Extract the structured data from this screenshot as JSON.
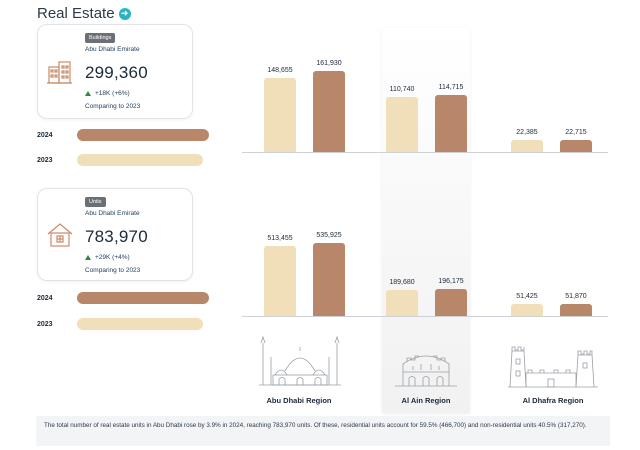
{
  "header": {
    "title": "Real Estate",
    "arrow_icon": "arrow-right-circle-icon"
  },
  "colors": {
    "y2024": "#b8876a",
    "y2023": "#f0dfb8",
    "accent": "#2bb3c0",
    "up": "#2a8a3a"
  },
  "cards": {
    "buildings": {
      "badge": "Buildings",
      "subtitle": "Abu Dhabi Emirate",
      "value": "299,360",
      "change": "+18K (+6%)",
      "compare": "Comparing to 2023",
      "icon": "building-icon"
    },
    "units": {
      "badge": "Units",
      "subtitle": "Abu Dhabi Emirate",
      "value": "783,970",
      "change": "+29K (+4%)",
      "compare": "Comparing to 2023",
      "icon": "house-icon"
    }
  },
  "legend": {
    "y2024": "2024",
    "y2023": "2023"
  },
  "chart_data": [
    {
      "type": "bar",
      "categories": [
        "Abu Dhabi Region",
        "Al Ain Region",
        "Al Dhafra Region"
      ],
      "series": [
        {
          "name": "2023",
          "values": [
            148655,
            110740,
            22385
          ],
          "labels": [
            "148,655",
            "110,740",
            "22,385"
          ]
        },
        {
          "name": "2024",
          "values": [
            161930,
            114715,
            22715
          ],
          "labels": [
            "161,930",
            "114,715",
            "22,715"
          ]
        }
      ],
      "ylim": [
        0,
        180000
      ]
    },
    {
      "type": "bar",
      "categories": [
        "Abu Dhabi Region",
        "Al Ain Region",
        "Al Dhafra Region"
      ],
      "series": [
        {
          "name": "2023",
          "values": [
            513455,
            189680,
            51425
          ],
          "labels": [
            "513,455",
            "189,680",
            "51,425"
          ]
        },
        {
          "name": "2024",
          "values": [
            535925,
            196175,
            51870
          ],
          "labels": [
            "535,925",
            "196,175",
            "51,870"
          ]
        }
      ],
      "ylim": [
        0,
        600000
      ]
    }
  ],
  "regions": {
    "abu_dhabi": {
      "label": "Abu Dhabi Region",
      "icon": "grand-mosque-icon"
    },
    "al_ain": {
      "label": "Al Ain Region",
      "icon": "fort-icon"
    },
    "al_dhafra": {
      "label": "Al Dhafra Region",
      "icon": "watchtower-icon"
    }
  },
  "footer": {
    "text": "The total number of real estate units in Abu Dhabi rose by 3.9% in 2024, reaching 783,970 units. Of these, residential units account for 59.5% (466,700) and non-residential units 40.5% (317,270)."
  }
}
